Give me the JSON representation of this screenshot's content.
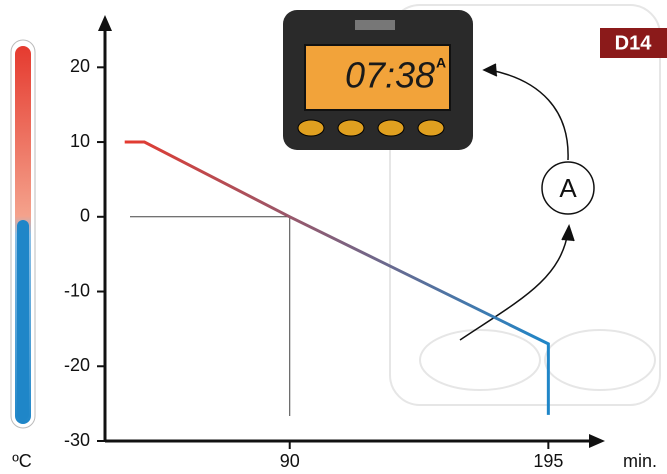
{
  "chart_data": {
    "type": "line",
    "x_label": "min.",
    "y_label": "ºC",
    "x": [
      23,
      31,
      90,
      195,
      195
    ],
    "series": [
      {
        "values": [
          10,
          10,
          0,
          -17,
          -26.5
        ],
        "color": "#e53a2f",
        "color_end": "#1f86c8"
      }
    ],
    "xlim": [
      15,
      218
    ],
    "ylim": [
      -30,
      27
    ],
    "xticks": [
      90,
      195
    ],
    "yticks": [
      -30,
      -20,
      -10,
      0,
      10,
      20
    ]
  },
  "badge": "D14",
  "callout": "A",
  "clock": {
    "time": "07:38",
    "mode": "A"
  }
}
